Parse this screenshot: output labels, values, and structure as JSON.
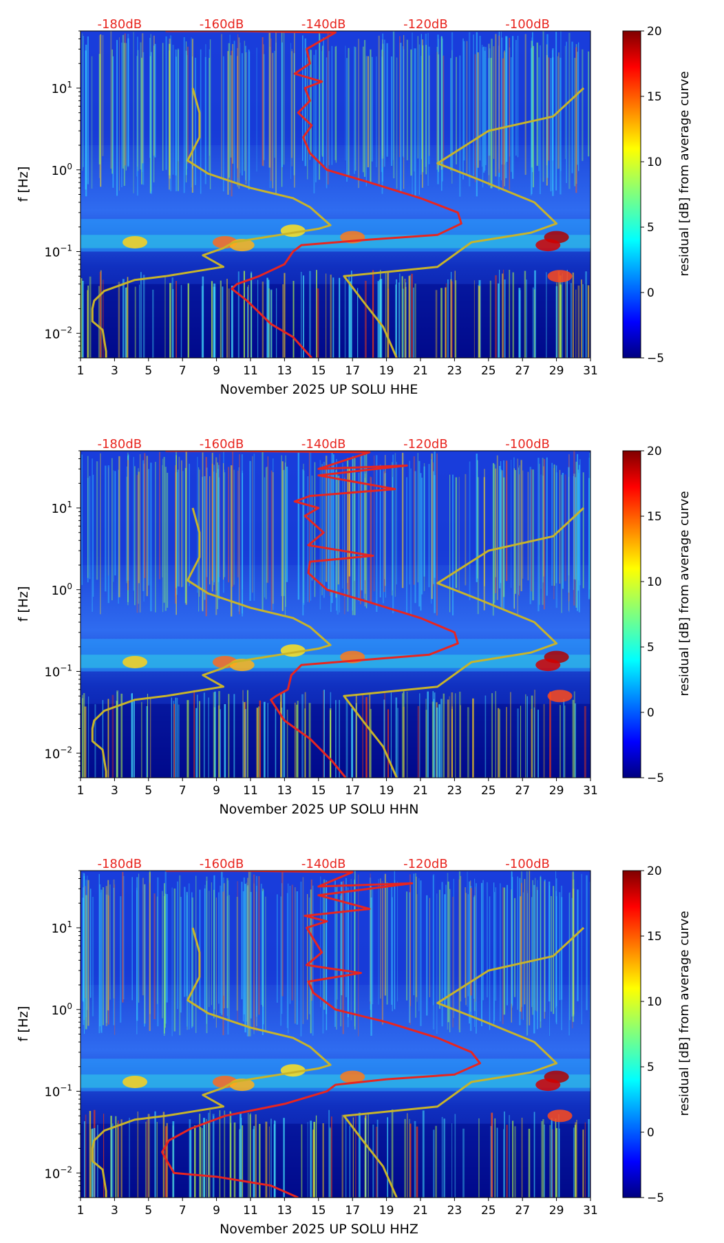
{
  "chart_data": [
    {
      "type": "heatmap",
      "panel": "HHE",
      "xlabel": "November 2025 UP SOLU  HHE",
      "ylabel": "f [Hz]",
      "x_ticks": [
        "1",
        "3",
        "5",
        "7",
        "9",
        "11",
        "13",
        "15",
        "17",
        "19",
        "21",
        "23",
        "25",
        "27",
        "29",
        "31"
      ],
      "xlim": [
        1,
        31
      ],
      "ylim": [
        0.005,
        50
      ],
      "y_ticks": [
        {
          "value": 10,
          "base": "10",
          "exp": "1"
        },
        {
          "value": 1,
          "base": "10",
          "exp": "0"
        },
        {
          "value": 0.1,
          "base": "10",
          "exp": "−1"
        },
        {
          "value": 0.01,
          "base": "10",
          "exp": "−2"
        }
      ],
      "top_labels": [
        "-180dB",
        "-160dB",
        "-140dB",
        "-120dB",
        "-100dB"
      ],
      "top_label_positions": [
        3.3,
        9.3,
        15.3,
        21.3,
        27.3
      ],
      "colorbar": {
        "label": "residual [dB] from average curve",
        "ticks": [
          "20",
          "15",
          "10",
          "5",
          "0",
          "−5"
        ],
        "range": [
          -5,
          20
        ],
        "colormap": "jet"
      },
      "series": [
        {
          "name": "median-psd",
          "color": "#e8251f",
          "points": [
            [
              6,
              50
            ],
            [
              10,
              50
            ],
            [
              16,
              48
            ],
            [
              14.3,
              30
            ],
            [
              14.5,
              20
            ],
            [
              13.6,
              15
            ],
            [
              15.2,
              12
            ],
            [
              14.2,
              10
            ],
            [
              14.5,
              7
            ],
            [
              13.8,
              5
            ],
            [
              14.6,
              3.5
            ],
            [
              14.1,
              2.5
            ],
            [
              14.5,
              1.6
            ],
            [
              15.5,
              1
            ],
            [
              18,
              0.7
            ],
            [
              21,
              0.45
            ],
            [
              23.2,
              0.3
            ],
            [
              23.4,
              0.22
            ],
            [
              22,
              0.16
            ],
            [
              18,
              0.14
            ],
            [
              14,
              0.12
            ],
            [
              13.5,
              0.1
            ],
            [
              13,
              0.07
            ],
            [
              11.5,
              0.05
            ],
            [
              10.2,
              0.04
            ],
            [
              9.9,
              0.035
            ],
            [
              10.8,
              0.025
            ],
            [
              12.2,
              0.013
            ],
            [
              13.5,
              0.009
            ],
            [
              14.6,
              0.005
            ]
          ]
        },
        {
          "name": "noise-model-low",
          "color": "#c8b42a",
          "points": [
            [
              7.6,
              10
            ],
            [
              8,
              5
            ],
            [
              8,
              2.5
            ],
            [
              7.3,
              1.3
            ],
            [
              8.5,
              0.9
            ],
            [
              11,
              0.6
            ],
            [
              13.5,
              0.45
            ],
            [
              14.5,
              0.35
            ],
            [
              15.7,
              0.21
            ],
            [
              15,
              0.19
            ],
            [
              12.7,
              0.16
            ],
            [
              10,
              0.13
            ],
            [
              9.4,
              0.11
            ],
            [
              8.2,
              0.09
            ],
            [
              9.4,
              0.065
            ],
            [
              6,
              0.05
            ],
            [
              4.2,
              0.045
            ],
            [
              2.4,
              0.033
            ],
            [
              1.8,
              0.025
            ],
            [
              1.7,
              0.02
            ],
            [
              1.7,
              0.014
            ],
            [
              2.3,
              0.011
            ],
            [
              2.5,
              0.006
            ],
            [
              2.5,
              0.005
            ]
          ]
        },
        {
          "name": "noise-model-high",
          "color": "#c8b42a",
          "points": [
            [
              30.6,
              10
            ],
            [
              28.8,
              4.5
            ],
            [
              25,
              3
            ],
            [
              22,
              1.2
            ],
            [
              24.5,
              0.75
            ],
            [
              27.7,
              0.4
            ],
            [
              29,
              0.22
            ],
            [
              27.5,
              0.17
            ],
            [
              24,
              0.13
            ],
            [
              22,
              0.065
            ],
            [
              16.5,
              0.05
            ],
            [
              17.6,
              0.025
            ],
            [
              18.8,
              0.012
            ],
            [
              19.6,
              0.005
            ]
          ]
        }
      ]
    },
    {
      "type": "heatmap",
      "panel": "HHN",
      "xlabel": "November 2025 UP SOLU  HHN",
      "ylabel": "f [Hz]",
      "x_ticks": [
        "1",
        "3",
        "5",
        "7",
        "9",
        "11",
        "13",
        "15",
        "17",
        "19",
        "21",
        "23",
        "25",
        "27",
        "29",
        "31"
      ],
      "xlim": [
        1,
        31
      ],
      "ylim": [
        0.005,
        50
      ],
      "y_ticks": [
        {
          "value": 10,
          "base": "10",
          "exp": "1"
        },
        {
          "value": 1,
          "base": "10",
          "exp": "0"
        },
        {
          "value": 0.1,
          "base": "10",
          "exp": "−1"
        },
        {
          "value": 0.01,
          "base": "10",
          "exp": "−2"
        }
      ],
      "top_labels": [
        "-180dB",
        "-160dB",
        "-140dB",
        "-120dB",
        "-100dB"
      ],
      "top_label_positions": [
        3.3,
        9.3,
        15.3,
        21.3,
        27.3
      ],
      "colorbar": {
        "label": "residual [dB] from average curve",
        "ticks": [
          "20",
          "15",
          "10",
          "5",
          "0",
          "−5"
        ],
        "range": [
          -5,
          20
        ],
        "colormap": "jet"
      },
      "series": [
        {
          "name": "median-psd",
          "color": "#e8251f",
          "points": [
            [
              6,
              50
            ],
            [
              10,
              50
            ],
            [
              18,
              48
            ],
            [
              15,
              30
            ],
            [
              20.2,
              33
            ],
            [
              15,
              25
            ],
            [
              19.5,
              17
            ],
            [
              14.5,
              14
            ],
            [
              13.6,
              12
            ],
            [
              15,
              10
            ],
            [
              14.2,
              8
            ],
            [
              15.3,
              5
            ],
            [
              14.4,
              3.5
            ],
            [
              18.2,
              2.6
            ],
            [
              14.5,
              2.2
            ],
            [
              14.4,
              1.6
            ],
            [
              15.5,
              1
            ],
            [
              18,
              0.7
            ],
            [
              21,
              0.45
            ],
            [
              23,
              0.3
            ],
            [
              23.2,
              0.22
            ],
            [
              21.5,
              0.16
            ],
            [
              18,
              0.14
            ],
            [
              14,
              0.12
            ],
            [
              13.4,
              0.09
            ],
            [
              13.2,
              0.06
            ],
            [
              12.5,
              0.05
            ],
            [
              12.2,
              0.045
            ],
            [
              13,
              0.025
            ],
            [
              14.5,
              0.015
            ],
            [
              15.8,
              0.008
            ],
            [
              16.6,
              0.005
            ]
          ]
        },
        {
          "name": "noise-model-low",
          "color": "#c8b42a",
          "points": [
            [
              7.6,
              10
            ],
            [
              8,
              5
            ],
            [
              8,
              2.5
            ],
            [
              7.3,
              1.3
            ],
            [
              8.5,
              0.9
            ],
            [
              11,
              0.6
            ],
            [
              13.5,
              0.45
            ],
            [
              14.5,
              0.35
            ],
            [
              15.7,
              0.21
            ],
            [
              15,
              0.19
            ],
            [
              12.7,
              0.16
            ],
            [
              10,
              0.13
            ],
            [
              9.4,
              0.11
            ],
            [
              8.2,
              0.09
            ],
            [
              9.4,
              0.065
            ],
            [
              6,
              0.05
            ],
            [
              4.2,
              0.045
            ],
            [
              2.4,
              0.033
            ],
            [
              1.8,
              0.025
            ],
            [
              1.7,
              0.02
            ],
            [
              1.7,
              0.014
            ],
            [
              2.3,
              0.011
            ],
            [
              2.5,
              0.006
            ],
            [
              2.5,
              0.005
            ]
          ]
        },
        {
          "name": "noise-model-high",
          "color": "#c8b42a",
          "points": [
            [
              30.6,
              10
            ],
            [
              28.8,
              4.5
            ],
            [
              25,
              3
            ],
            [
              22,
              1.2
            ],
            [
              24.5,
              0.75
            ],
            [
              27.7,
              0.4
            ],
            [
              29,
              0.22
            ],
            [
              27.5,
              0.17
            ],
            [
              24,
              0.13
            ],
            [
              22,
              0.065
            ],
            [
              16.5,
              0.05
            ],
            [
              17.6,
              0.025
            ],
            [
              18.8,
              0.012
            ],
            [
              19.6,
              0.005
            ]
          ]
        }
      ]
    },
    {
      "type": "heatmap",
      "panel": "HHZ",
      "xlabel": "November 2025 UP SOLU  HHZ",
      "ylabel": "f [Hz]",
      "x_ticks": [
        "1",
        "3",
        "5",
        "7",
        "9",
        "11",
        "13",
        "15",
        "17",
        "19",
        "21",
        "23",
        "25",
        "27",
        "29",
        "31"
      ],
      "xlim": [
        1,
        31
      ],
      "ylim": [
        0.005,
        50
      ],
      "y_ticks": [
        {
          "value": 10,
          "base": "10",
          "exp": "1"
        },
        {
          "value": 1,
          "base": "10",
          "exp": "0"
        },
        {
          "value": 0.1,
          "base": "10",
          "exp": "−1"
        },
        {
          "value": 0.01,
          "base": "10",
          "exp": "−2"
        }
      ],
      "top_labels": [
        "-180dB",
        "-160dB",
        "-140dB",
        "-120dB",
        "-100dB"
      ],
      "top_label_positions": [
        3.3,
        9.3,
        15.3,
        21.3,
        27.3
      ],
      "colorbar": {
        "label": "residual [dB] from average curve",
        "ticks": [
          "20",
          "15",
          "10",
          "5",
          "0",
          "−5"
        ],
        "range": [
          -5,
          20
        ],
        "colormap": "jet"
      },
      "series": [
        {
          "name": "median-psd",
          "color": "#e8251f",
          "points": [
            [
              6,
              50
            ],
            [
              10,
              50
            ],
            [
              17,
              48
            ],
            [
              15,
              32
            ],
            [
              20.5,
              35
            ],
            [
              15,
              25
            ],
            [
              18,
              17
            ],
            [
              14.2,
              14
            ],
            [
              15.5,
              12
            ],
            [
              14.3,
              10
            ],
            [
              15.2,
              5
            ],
            [
              14.3,
              3.5
            ],
            [
              17.5,
              2.8
            ],
            [
              14.4,
              2.2
            ],
            [
              14.7,
              1.6
            ],
            [
              16,
              1
            ],
            [
              19,
              0.7
            ],
            [
              22,
              0.45
            ],
            [
              24,
              0.3
            ],
            [
              24.5,
              0.22
            ],
            [
              23,
              0.16
            ],
            [
              19,
              0.14
            ],
            [
              16,
              0.12
            ],
            [
              15.5,
              0.1
            ],
            [
              13,
              0.07
            ],
            [
              9.5,
              0.05
            ],
            [
              7.5,
              0.035
            ],
            [
              6.2,
              0.025
            ],
            [
              5.8,
              0.018
            ],
            [
              6,
              0.015
            ],
            [
              6.5,
              0.01
            ],
            [
              9,
              0.009
            ],
            [
              12.2,
              0.007
            ],
            [
              13.8,
              0.005
            ]
          ]
        },
        {
          "name": "noise-model-low",
          "color": "#c8b42a",
          "points": [
            [
              7.6,
              10
            ],
            [
              8,
              5
            ],
            [
              8,
              2.5
            ],
            [
              7.3,
              1.3
            ],
            [
              8.5,
              0.9
            ],
            [
              11,
              0.6
            ],
            [
              13.5,
              0.45
            ],
            [
              14.5,
              0.35
            ],
            [
              15.7,
              0.21
            ],
            [
              15,
              0.19
            ],
            [
              12.7,
              0.16
            ],
            [
              10,
              0.13
            ],
            [
              9.4,
              0.11
            ],
            [
              8.2,
              0.09
            ],
            [
              9.4,
              0.065
            ],
            [
              6,
              0.05
            ],
            [
              4.2,
              0.045
            ],
            [
              2.4,
              0.033
            ],
            [
              1.8,
              0.025
            ],
            [
              1.7,
              0.02
            ],
            [
              1.7,
              0.014
            ],
            [
              2.3,
              0.011
            ],
            [
              2.5,
              0.006
            ],
            [
              2.5,
              0.005
            ]
          ]
        },
        {
          "name": "noise-model-high",
          "color": "#c8b42a",
          "points": [
            [
              30.6,
              10
            ],
            [
              28.8,
              4.5
            ],
            [
              25,
              3
            ],
            [
              22,
              1.2
            ],
            [
              24.5,
              0.75
            ],
            [
              27.7,
              0.4
            ],
            [
              29,
              0.22
            ],
            [
              27.5,
              0.17
            ],
            [
              24,
              0.13
            ],
            [
              22,
              0.065
            ],
            [
              16.5,
              0.05
            ],
            [
              17.6,
              0.025
            ],
            [
              18.8,
              0.012
            ],
            [
              19.6,
              0.005
            ]
          ]
        }
      ]
    }
  ]
}
